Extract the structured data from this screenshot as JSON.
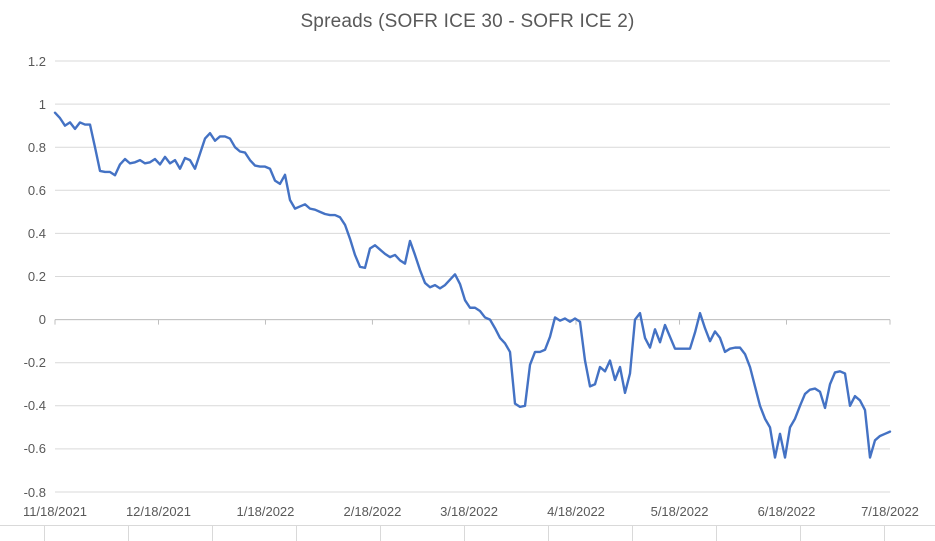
{
  "chart": {
    "title": "Spreads (SOFR ICE 30 - SOFR ICE 2)"
  },
  "colors": {
    "line": "#4472C4",
    "gridline": "#D9D9D9",
    "axis_line": "#BFBFBF",
    "text": "#595959",
    "worksheet_grid": "#D9D9D9",
    "background": "#FFFFFF"
  },
  "chart_data": {
    "type": "line",
    "title": "Spreads (SOFR ICE 30 - SOFR ICE 2)",
    "legend": false,
    "grid": true,
    "x_start": "11/18/2021",
    "x_end": "7/18/2022",
    "x_frequency": "daily (business days)",
    "x_tick_labels": [
      "11/18/2021",
      "12/18/2021",
      "1/18/2022",
      "2/18/2022",
      "3/18/2022",
      "4/18/2022",
      "5/18/2022",
      "6/18/2022",
      "7/18/2022"
    ],
    "y_tick_labels": [
      "1.2",
      "1",
      "0.8",
      "0.6",
      "0.4",
      "0.2",
      "0",
      "-0.2",
      "-0.4",
      "-0.6",
      "-0.8"
    ],
    "ylim": [
      -0.8,
      1.2
    ],
    "y_tick_step": 0.2,
    "n_points": 168,
    "values": [
      0.96,
      0.935,
      0.9,
      0.915,
      0.885,
      0.915,
      0.905,
      0.905,
      0.8,
      0.69,
      0.685,
      0.685,
      0.67,
      0.72,
      0.745,
      0.725,
      0.73,
      0.74,
      0.725,
      0.73,
      0.745,
      0.72,
      0.755,
      0.725,
      0.74,
      0.7,
      0.75,
      0.74,
      0.7,
      0.77,
      0.84,
      0.865,
      0.83,
      0.85,
      0.85,
      0.84,
      0.8,
      0.78,
      0.775,
      0.74,
      0.715,
      0.71,
      0.71,
      0.7,
      0.645,
      0.63,
      0.672,
      0.555,
      0.515,
      0.525,
      0.535,
      0.515,
      0.51,
      0.5,
      0.49,
      0.485,
      0.485,
      0.475,
      0.44,
      0.375,
      0.3,
      0.245,
      0.24,
      0.33,
      0.345,
      0.325,
      0.305,
      0.29,
      0.3,
      0.275,
      0.26,
      0.365,
      0.3,
      0.23,
      0.17,
      0.15,
      0.16,
      0.145,
      0.16,
      0.185,
      0.21,
      0.165,
      0.09,
      0.055,
      0.055,
      0.04,
      0.01,
      0.0,
      -0.04,
      -0.085,
      -0.11,
      -0.15,
      -0.39,
      -0.405,
      -0.4,
      -0.21,
      -0.15,
      -0.15,
      -0.14,
      -0.08,
      0.01,
      -0.005,
      0.005,
      -0.01,
      0.005,
      -0.01,
      -0.19,
      -0.31,
      -0.3,
      -0.22,
      -0.24,
      -0.19,
      -0.28,
      -0.22,
      -0.34,
      -0.25,
      0.0,
      0.03,
      -0.085,
      -0.13,
      -0.045,
      -0.105,
      -0.025,
      -0.08,
      -0.135,
      -0.135,
      -0.135,
      -0.135,
      -0.06,
      0.03,
      -0.04,
      -0.1,
      -0.055,
      -0.085,
      -0.15,
      -0.135,
      -0.13,
      -0.13,
      -0.16,
      -0.22,
      -0.31,
      -0.4,
      -0.46,
      -0.5,
      -0.64,
      -0.53,
      -0.64,
      -0.5,
      -0.46,
      -0.4,
      -0.345,
      -0.325,
      -0.32,
      -0.335,
      -0.41,
      -0.3,
      -0.245,
      -0.24,
      -0.25,
      -0.4,
      -0.355,
      -0.375,
      -0.42,
      -0.64,
      -0.56,
      -0.54,
      -0.53,
      -0.52
    ]
  }
}
